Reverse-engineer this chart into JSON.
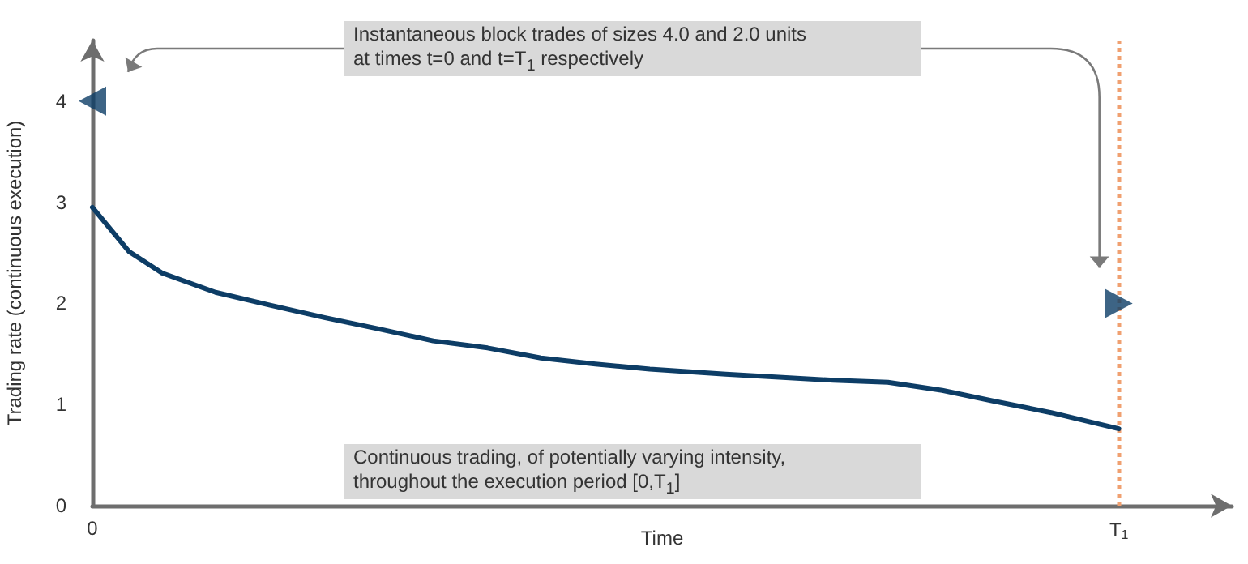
{
  "chart_data": {
    "type": "line",
    "xlabel": "Time",
    "ylabel": "Trading rate (continuous execution)",
    "xlim": [
      0,
      1.11
    ],
    "xticks": [
      {
        "value": 0,
        "label": "0"
      },
      {
        "value": 1,
        "label": "T$_{1}$"
      }
    ],
    "ylim": [
      0,
      4.6
    ],
    "yticks": [
      0,
      1,
      2,
      3,
      4
    ],
    "grid": false,
    "series": [
      {
        "color": "#0d3d66",
        "marker": "none",
        "x": [
          0,
          0.036,
          0.068,
          0.12,
          0.174,
          0.226,
          0.278,
          0.332,
          0.385,
          0.437,
          0.49,
          0.543,
          0.617,
          0.722,
          0.775,
          0.828,
          0.88,
          0.934,
          1
        ],
        "values": [
          2.95,
          2.51,
          2.3,
          2.11,
          1.98,
          1.86,
          1.75,
          1.63,
          1.56,
          1.46,
          1.4,
          1.35,
          1.3,
          1.24,
          1.22,
          1.14,
          1.03,
          0.92,
          0.76
        ]
      },
      {
        "type": "scatter",
        "color": "#0d3d66",
        "marker": "triangle",
        "x": [
          0,
          1
        ],
        "values": [
          4,
          2
        ]
      }
    ],
    "ref_lines": [
      {
        "axis": "x",
        "value": 1,
        "color": "#f0a070",
        "line_style": "dotted"
      }
    ],
    "annotations": [
      "Instantaneous block trades of sizes 4.0 and 2.0 units\nat times t=0 and t=T$_{1}$ respectively",
      "Continuous trading, of potentially varying intensity,\nthroughout the execution period [0,T$_{1}$]"
    ]
  }
}
